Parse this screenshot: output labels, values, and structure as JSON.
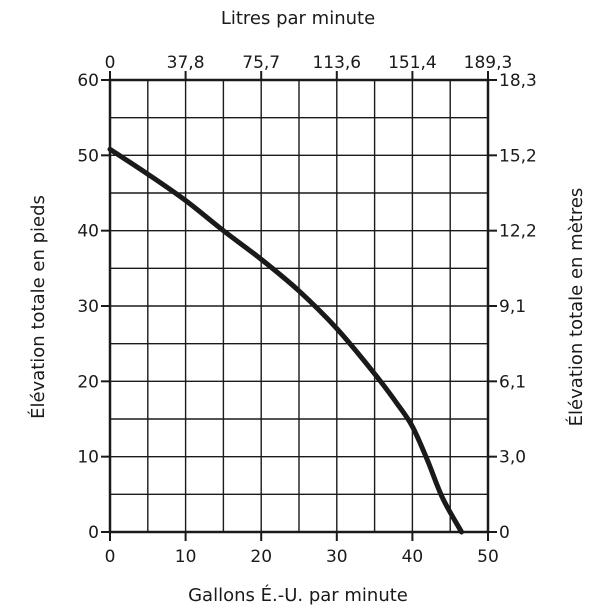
{
  "chart_data": {
    "type": "line",
    "title": "",
    "xlabel": "Gallons É.-U. par minute",
    "x2label": "Litres par minute",
    "ylabel": "Élévation totale en pieds",
    "y2label": "Élévation totale en mètres",
    "xlim": [
      0,
      50
    ],
    "ylim": [
      0,
      60
    ],
    "x_ticks": [
      "0",
      "10",
      "20",
      "30",
      "40",
      "50"
    ],
    "x2_ticks": [
      "0",
      "37,8",
      "75,7",
      "113,6",
      "151,4",
      "189,3"
    ],
    "y_ticks": [
      "0",
      "10",
      "20",
      "30",
      "40",
      "50",
      "60"
    ],
    "y2_ticks": [
      "0",
      "3,0",
      "6,1",
      "9,1",
      "12,2",
      "15,2",
      "18,3"
    ],
    "grid": true,
    "series": [
      {
        "x": [
          0,
          5,
          10,
          15,
          20,
          25,
          30,
          35,
          38,
          40,
          42,
          44,
          46.5
        ],
        "y": [
          50.8,
          47.5,
          44,
          40,
          36.2,
          32,
          27,
          21,
          17,
          14,
          9.5,
          4.5,
          0
        ],
        "color": "#1a1a1a"
      }
    ]
  }
}
